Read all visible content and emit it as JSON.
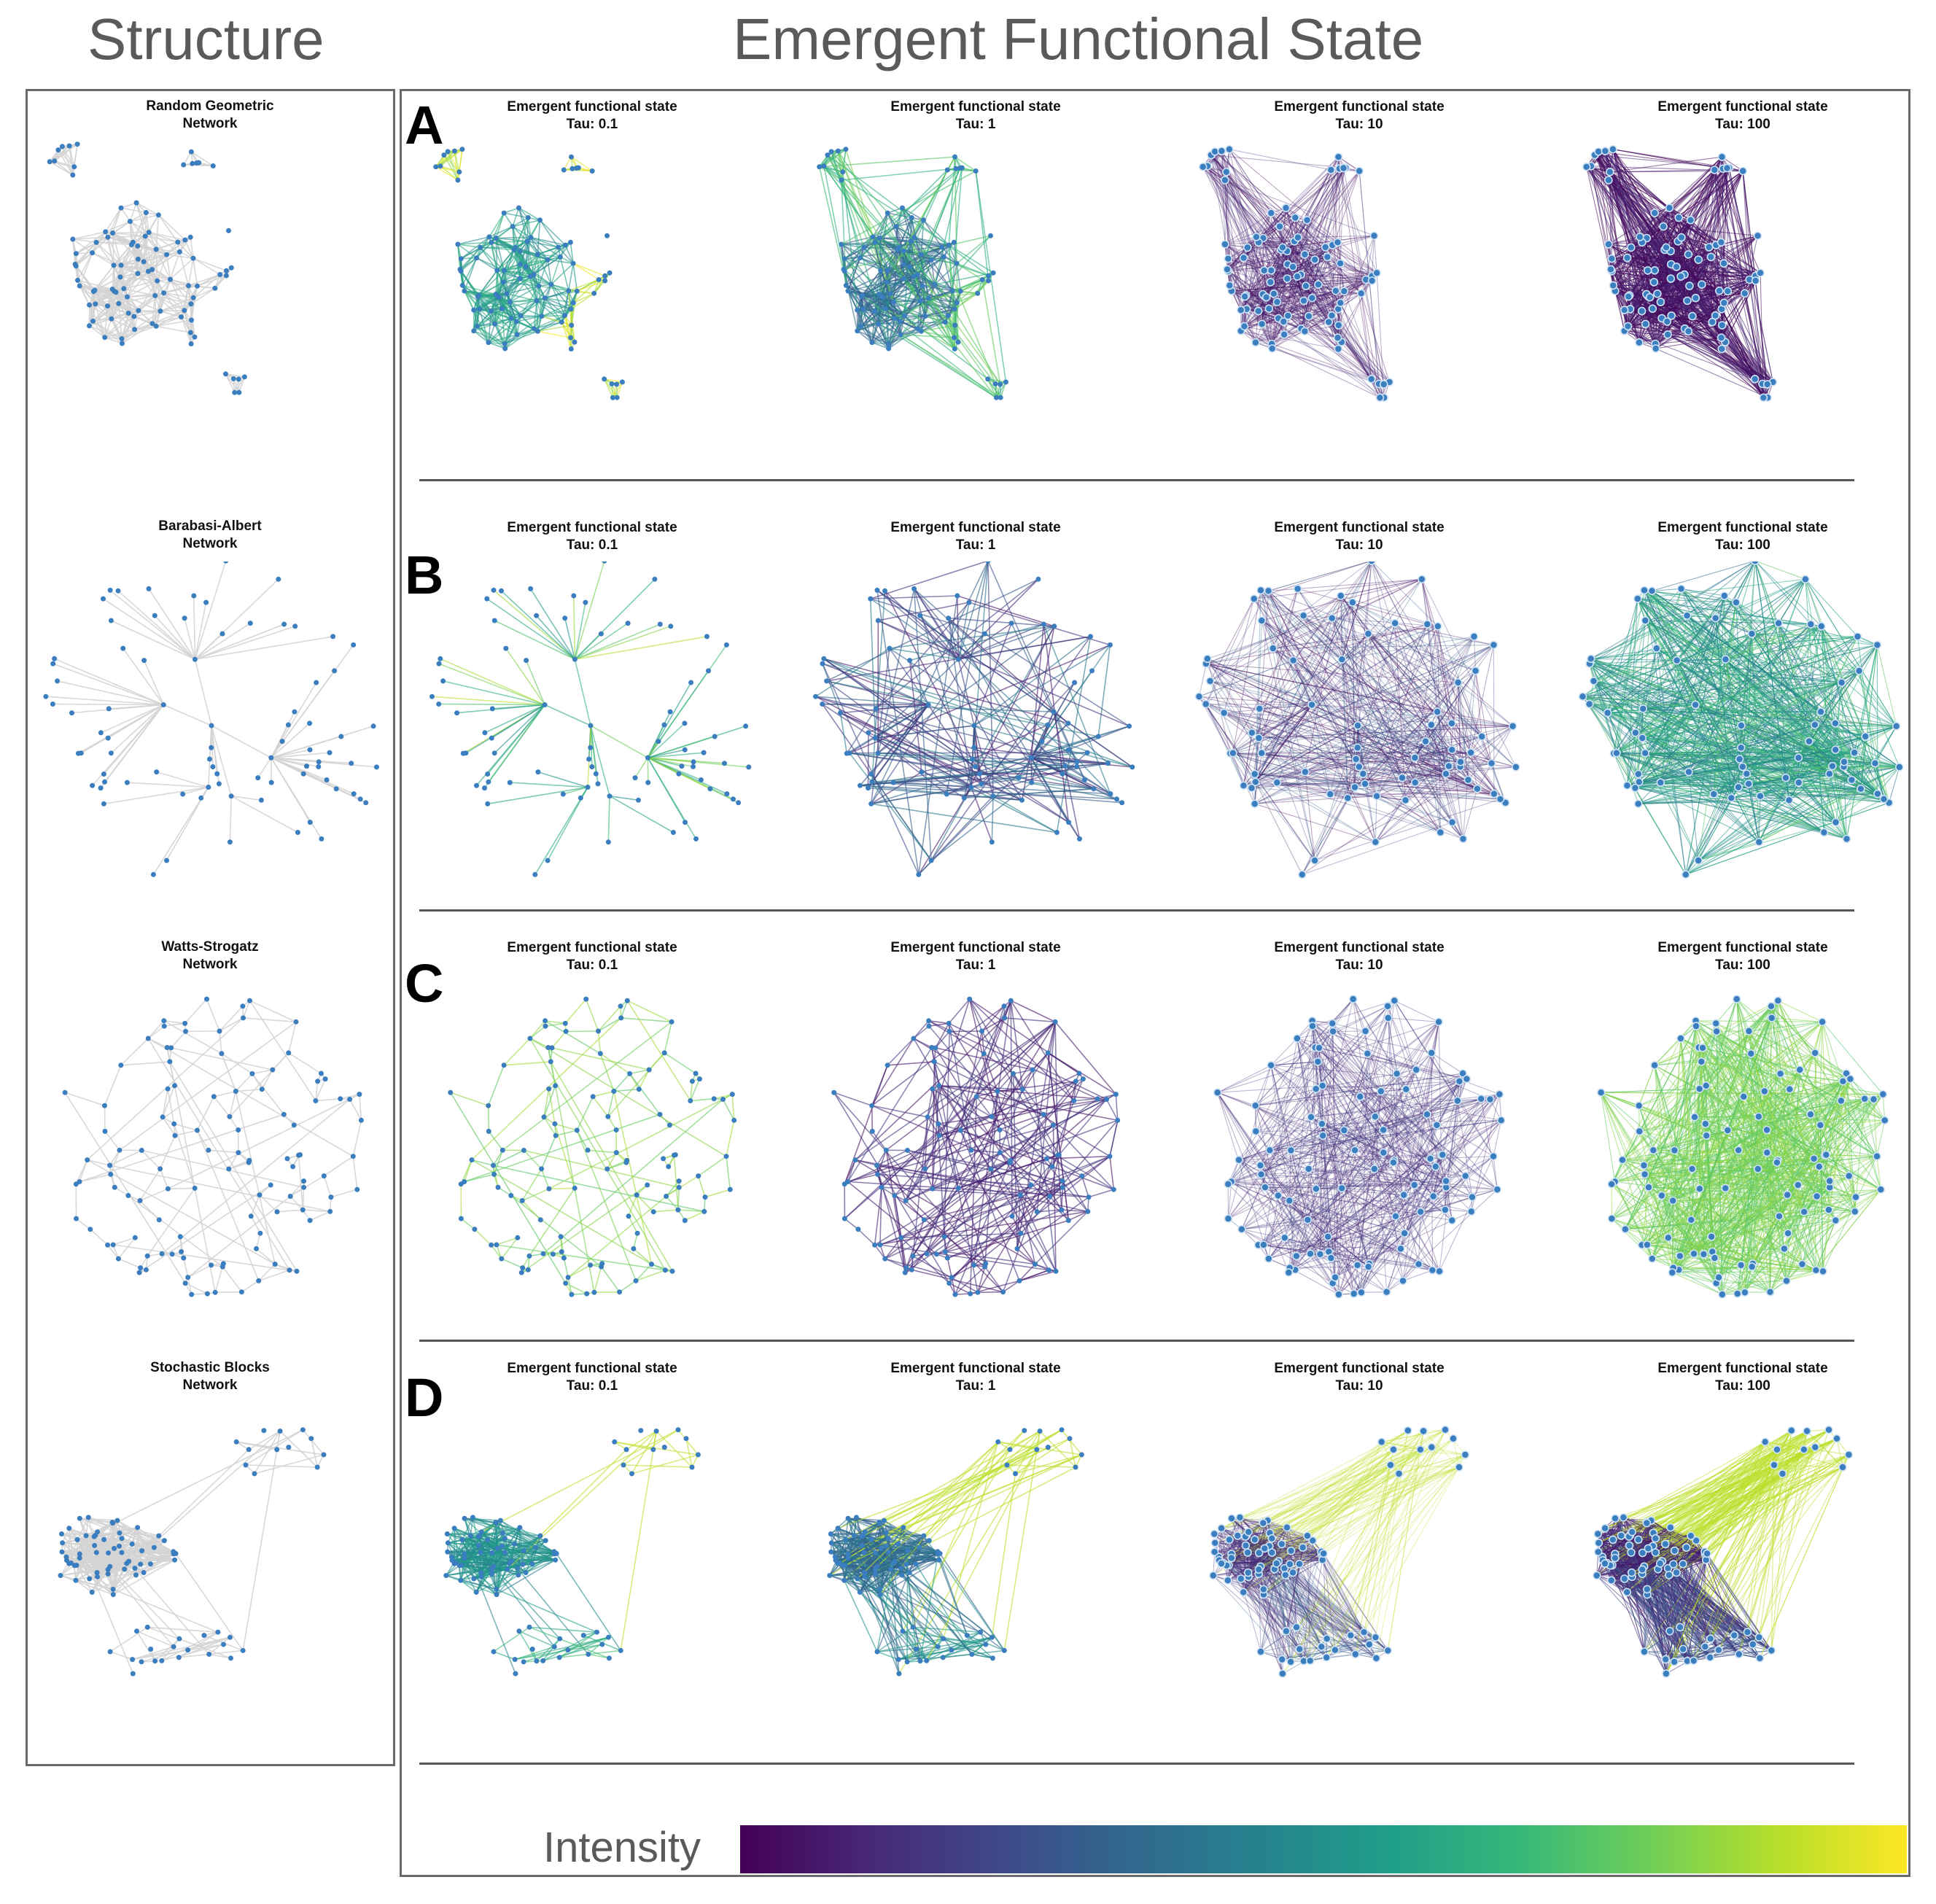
{
  "headers": {
    "structure": "Structure",
    "efs": "Emergent Functional State"
  },
  "structure_panels": [
    {
      "line1": "Random Geometric",
      "line2": "Network"
    },
    {
      "line1": "Barabasi-Albert",
      "line2": "Network"
    },
    {
      "line1": "Watts-Strogatz",
      "line2": "Network"
    },
    {
      "line1": "Stochastic Blocks",
      "line2": "Network"
    }
  ],
  "rows": [
    {
      "letter": "A",
      "network": "Random Geometric"
    },
    {
      "letter": "B",
      "network": "Barabasi-Albert"
    },
    {
      "letter": "C",
      "network": "Watts-Strogatz"
    },
    {
      "letter": "D",
      "network": "Stochastic Blocks"
    }
  ],
  "panel_title": "Emergent functional state",
  "taus": [
    "Tau: 0.1",
    "Tau: 1",
    "Tau: 10",
    "Tau: 100"
  ],
  "colorbar": {
    "label": "Intensity",
    "colormap": "viridis",
    "stops": [
      "#440154",
      "#482878",
      "#3e4989",
      "#31688e",
      "#26828e",
      "#1f9e89",
      "#35b779",
      "#6ece58",
      "#b5de2b",
      "#fde725"
    ]
  },
  "colors": {
    "node": "#3a7ebf",
    "structure_edge": "#d4d4d4",
    "frame": "#6a6a6a"
  }
}
